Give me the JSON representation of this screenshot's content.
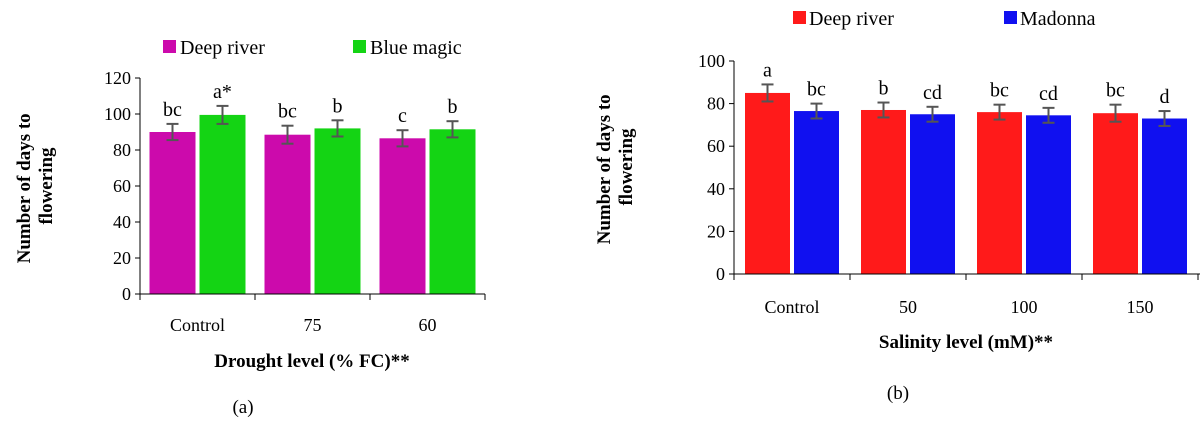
{
  "colors": {
    "deep_river_a": "#cc0aac",
    "blue_magic": "#14d414",
    "deep_river_b": "#ff1a1a",
    "madonna": "#1010f0",
    "error_bar": "#555555"
  },
  "chart_data": [
    {
      "type": "bar",
      "panel_label": "(a)",
      "categories": [
        "Control",
        "75",
        "60"
      ],
      "series": [
        {
          "name": "Deep river",
          "values": [
            90,
            88.5,
            86.5
          ],
          "errors": [
            4.5,
            5,
            4.5
          ],
          "letters": [
            "bc",
            "bc",
            "c"
          ]
        },
        {
          "name": "Blue magic",
          "values": [
            99.5,
            92,
            91.5
          ],
          "errors": [
            5,
            4.5,
            4.5
          ],
          "letters": [
            "a*",
            "b",
            "b"
          ]
        }
      ],
      "xlabel": "Drought level (% FC)**",
      "ylabel": "Number of days to flowering",
      "ylim": [
        0,
        120
      ],
      "yticks": [
        0,
        20,
        40,
        60,
        80,
        100,
        120
      ],
      "legend_position": "top"
    },
    {
      "type": "bar",
      "panel_label": "(b)",
      "categories": [
        "Control",
        "50",
        "100",
        "150"
      ],
      "series": [
        {
          "name": "Deep river",
          "values": [
            85,
            77,
            76,
            75.5
          ],
          "errors": [
            4,
            3.5,
            3.5,
            4
          ],
          "letters": [
            "a",
            "b",
            "bc",
            "bc"
          ]
        },
        {
          "name": "Madonna",
          "values": [
            76.5,
            75,
            74.5,
            73
          ],
          "errors": [
            3.5,
            3.5,
            3.5,
            3.5
          ],
          "letters": [
            "bc",
            "cd",
            "cd",
            "d"
          ]
        }
      ],
      "xlabel": "Salinity level (mM)**",
      "ylabel": "Number of days to flowering",
      "ylim": [
        0,
        100
      ],
      "yticks": [
        0,
        20,
        40,
        60,
        80,
        100
      ],
      "legend_position": "top"
    }
  ]
}
